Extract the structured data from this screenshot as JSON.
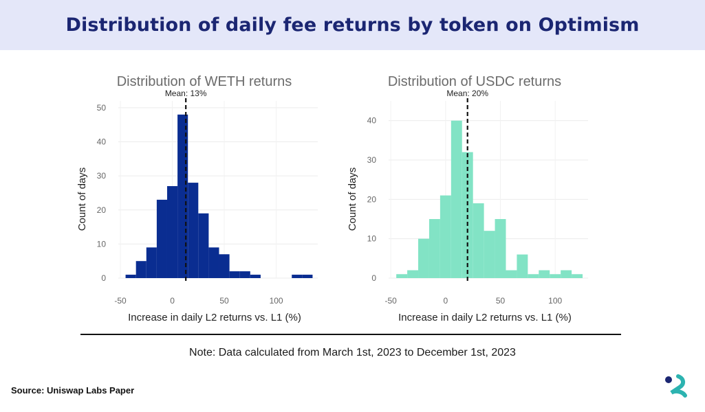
{
  "header": {
    "title": "Distribution of daily fee returns by token on Optimism"
  },
  "footer": {
    "note": "Note: Data calculated from March 1st, 2023 to December 1st, 2023",
    "source": "Source: Uniswap Labs Paper"
  },
  "colors": {
    "banner_bg": "#e4e7f9",
    "title": "#1b2672",
    "weth_bar": "#0a2d91",
    "usdc_bar": "#82e3c5",
    "logo_dark": "#1b2672",
    "logo_teal": "#2cb3b0"
  },
  "logo_icon": "uniswap-labs-logo-icon",
  "chart_data": [
    {
      "type": "bar",
      "title": "Distribution of WETH returns",
      "xlabel": "Increase in daily L2 returns vs. L1 (%)",
      "ylabel": "Count of days",
      "xlim": [
        -52,
        140
      ],
      "ylim": [
        0,
        52
      ],
      "x_ticks": [
        -50,
        0,
        50,
        100
      ],
      "x_tick_labels": [
        "-50",
        "0",
        "50",
        "100"
      ],
      "y_ticks": [
        0,
        10,
        20,
        30,
        40,
        50
      ],
      "y_tick_labels": [
        "0",
        "10",
        "20",
        "30",
        "40",
        "50"
      ],
      "bin_width": 10,
      "bins": [
        {
          "x0": -45,
          "x1": -35,
          "value": 1
        },
        {
          "x0": -35,
          "x1": -25,
          "value": 5
        },
        {
          "x0": -25,
          "x1": -15,
          "value": 9
        },
        {
          "x0": -15,
          "x1": -5,
          "value": 23
        },
        {
          "x0": -5,
          "x1": 5,
          "value": 27
        },
        {
          "x0": 5,
          "x1": 15,
          "value": 48
        },
        {
          "x0": 15,
          "x1": 25,
          "value": 28
        },
        {
          "x0": 25,
          "x1": 35,
          "value": 19
        },
        {
          "x0": 35,
          "x1": 45,
          "value": 9
        },
        {
          "x0": 45,
          "x1": 55,
          "value": 7
        },
        {
          "x0": 55,
          "x1": 65,
          "value": 2
        },
        {
          "x0": 65,
          "x1": 75,
          "value": 2
        },
        {
          "x0": 75,
          "x1": 85,
          "value": 1
        },
        {
          "x0": 115,
          "x1": 125,
          "value": 1
        },
        {
          "x0": 125,
          "x1": 135,
          "value": 1
        }
      ],
      "mean": 13,
      "mean_label": "Mean: 13%",
      "grid": true,
      "color": "#0a2d91"
    },
    {
      "type": "bar",
      "title": "Distribution of USDC returns",
      "xlabel": "Increase in daily L2 returns vs. L1 (%)",
      "ylabel": "Count of days",
      "xlim": [
        -52,
        130
      ],
      "ylim": [
        0,
        45
      ],
      "x_ticks": [
        -50,
        0,
        50,
        100
      ],
      "x_tick_labels": [
        "-50",
        "0",
        "50",
        "100"
      ],
      "y_ticks": [
        0,
        10,
        20,
        30,
        40
      ],
      "y_tick_labels": [
        "0",
        "10",
        "20",
        "30",
        "40"
      ],
      "bin_width": 10,
      "bins": [
        {
          "x0": -45,
          "x1": -35,
          "value": 1
        },
        {
          "x0": -35,
          "x1": -25,
          "value": 2
        },
        {
          "x0": -25,
          "x1": -15,
          "value": 10
        },
        {
          "x0": -15,
          "x1": -5,
          "value": 15
        },
        {
          "x0": -5,
          "x1": 5,
          "value": 21
        },
        {
          "x0": 5,
          "x1": 15,
          "value": 40
        },
        {
          "x0": 15,
          "x1": 25,
          "value": 32
        },
        {
          "x0": 25,
          "x1": 35,
          "value": 19
        },
        {
          "x0": 35,
          "x1": 45,
          "value": 12
        },
        {
          "x0": 45,
          "x1": 55,
          "value": 15
        },
        {
          "x0": 55,
          "x1": 65,
          "value": 2
        },
        {
          "x0": 65,
          "x1": 75,
          "value": 6
        },
        {
          "x0": 75,
          "x1": 85,
          "value": 1
        },
        {
          "x0": 85,
          "x1": 95,
          "value": 2
        },
        {
          "x0": 95,
          "x1": 105,
          "value": 1
        },
        {
          "x0": 105,
          "x1": 115,
          "value": 2
        },
        {
          "x0": 115,
          "x1": 125,
          "value": 1
        }
      ],
      "mean": 20,
      "mean_label": "Mean: 20%",
      "grid": true,
      "color": "#82e3c5"
    }
  ]
}
